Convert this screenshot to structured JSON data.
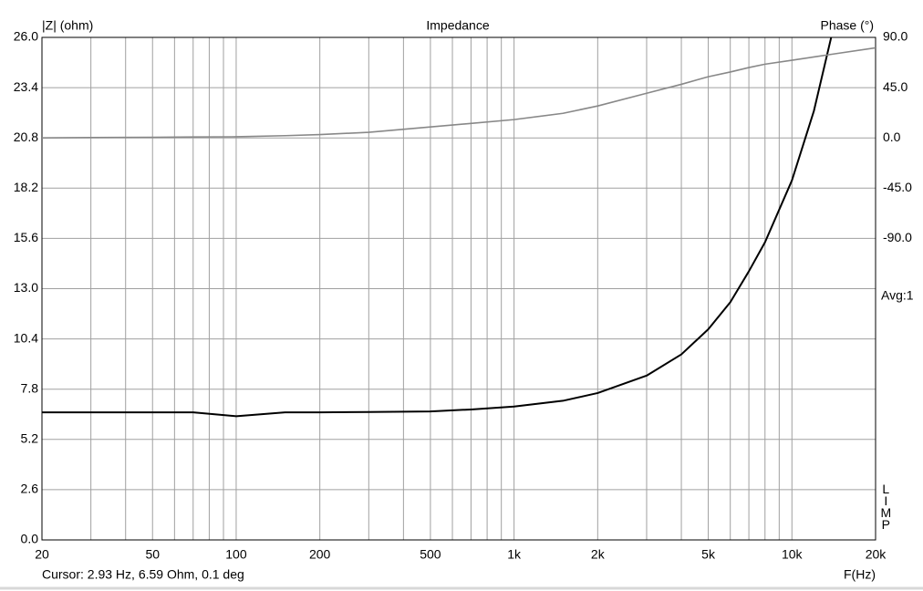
{
  "chart_data": {
    "type": "line",
    "title": "Impedance",
    "y_label": "|Z| (ohm)",
    "y2_label": "Phase (°)",
    "x_label": "F(Hz)",
    "side_note": "Avg:1",
    "brand": "LIMP",
    "status": "Cursor: 2.93 Hz, 6.59 Ohm, 0.1 deg",
    "log_x": true,
    "grid": true,
    "xlim": [
      20,
      20000
    ],
    "xticks": [
      20,
      50,
      100,
      200,
      500,
      {
        "value": 1000,
        "label": "1k"
      },
      {
        "value": 2000,
        "label": "2k"
      },
      {
        "value": 5000,
        "label": "5k"
      },
      {
        "value": 10000,
        "label": "10k"
      },
      {
        "value": 20000,
        "label": "20k"
      }
    ],
    "xminor": [
      30,
      40,
      60,
      70,
      80,
      90,
      300,
      400,
      600,
      700,
      800,
      900,
      3000,
      4000,
      6000,
      7000,
      8000,
      9000
    ],
    "ylim": [
      0,
      26
    ],
    "yticks": [
      {
        "value": 0,
        "label": "0.0"
      },
      2.6,
      5.2,
      7.8,
      10.4,
      {
        "value": 13,
        "label": "13.0"
      },
      15.6,
      18.2,
      20.8,
      23.4,
      {
        "value": 26,
        "label": "26.0"
      }
    ],
    "y2lim": [
      -360,
      90
    ],
    "y2ticks": [
      {
        "value": -90,
        "label": "-90.0"
      },
      {
        "value": -45,
        "label": "-45.0"
      },
      {
        "value": 0,
        "label": "0.0"
      },
      {
        "value": 45,
        "label": "45.0"
      },
      {
        "value": 90,
        "label": "90.0"
      }
    ],
    "x": [
      20,
      30,
      50,
      70,
      100,
      150,
      200,
      300,
      500,
      700,
      1000,
      1500,
      2000,
      3000,
      4000,
      5000,
      6000,
      7000,
      8000,
      10000,
      12000,
      14000,
      20000
    ],
    "series": [
      {
        "name": "|Z|",
        "color": "#000000",
        "values": [
          6.6,
          6.6,
          6.6,
          6.6,
          6.4,
          6.6,
          6.6,
          6.62,
          6.65,
          6.75,
          6.9,
          7.2,
          7.6,
          8.5,
          9.6,
          10.9,
          12.3,
          13.9,
          15.4,
          18.6,
          22.2,
          26.3,
          null
        ]
      },
      {
        "name": "Phase",
        "color": "#888888",
        "axis": "y2",
        "values": [
          0,
          0.3,
          0.5,
          0.8,
          1,
          2,
          3,
          5,
          9.8,
          13,
          16.4,
          22,
          28.6,
          40,
          48,
          54.8,
          59,
          63,
          66,
          69.5,
          72.5,
          75,
          80.7
        ]
      }
    ]
  }
}
